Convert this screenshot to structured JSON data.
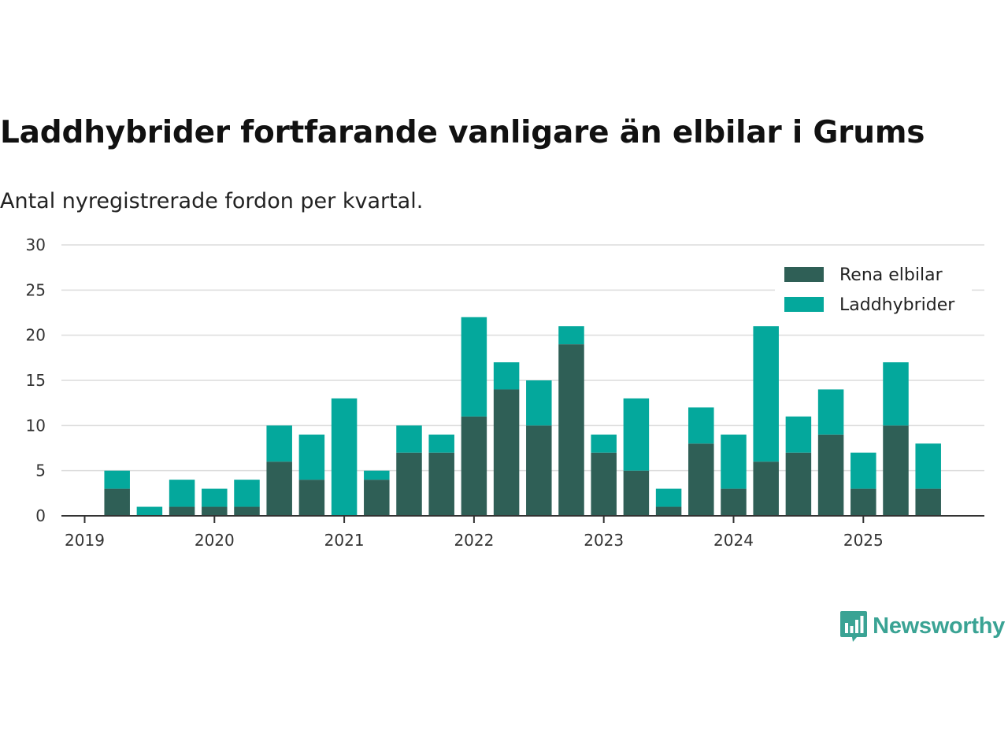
{
  "chart_data": {
    "type": "bar",
    "stacked": true,
    "title": "Laddhybrider fortfarande vanligare än elbilar i Grums",
    "subtitle": "Antal nyregistrerade fordon per kvartal.",
    "xlabel": "",
    "ylabel": "",
    "ylim": [
      0,
      30
    ],
    "yticks": [
      "0",
      "5",
      "10",
      "15",
      "20",
      "25",
      "30"
    ],
    "year_ticks": [
      "2019",
      "2020",
      "2021",
      "2022",
      "2023",
      "2024",
      "2025"
    ],
    "categories": [
      "2019 Q1",
      "2019 Q2",
      "2019 Q3",
      "2019 Q4",
      "2020 Q1",
      "2020 Q2",
      "2020 Q3",
      "2020 Q4",
      "2021 Q1",
      "2021 Q2",
      "2021 Q3",
      "2021 Q4",
      "2022 Q1",
      "2022 Q2",
      "2022 Q3",
      "2022 Q4",
      "2023 Q1",
      "2023 Q2",
      "2023 Q3",
      "2023 Q4",
      "2024 Q1",
      "2024 Q2",
      "2024 Q3",
      "2024 Q4",
      "2025 Q1",
      "2025 Q2",
      "2025 Q3"
    ],
    "series": [
      {
        "name": "Rena elbilar",
        "color": "#2f5f56",
        "values": [
          3,
          0,
          1,
          1,
          1,
          6,
          4,
          0,
          4,
          7,
          7,
          11,
          14,
          10,
          19,
          7,
          5,
          1,
          8,
          3,
          6,
          7,
          9,
          3,
          10,
          3,
          0
        ]
      },
      {
        "name": "Laddhybrider",
        "color": "#04a89c",
        "values": [
          2,
          1,
          3,
          2,
          3,
          4,
          5,
          13,
          1,
          3,
          2,
          11,
          3,
          5,
          2,
          2,
          8,
          2,
          4,
          6,
          15,
          4,
          5,
          4,
          7,
          5,
          0
        ]
      }
    ],
    "legend_position": "top-right",
    "grid": true
  },
  "brand": {
    "name": "Newsworthy",
    "color": "#3aa394",
    "icon": "bar-chart-speech-bubble-icon"
  }
}
